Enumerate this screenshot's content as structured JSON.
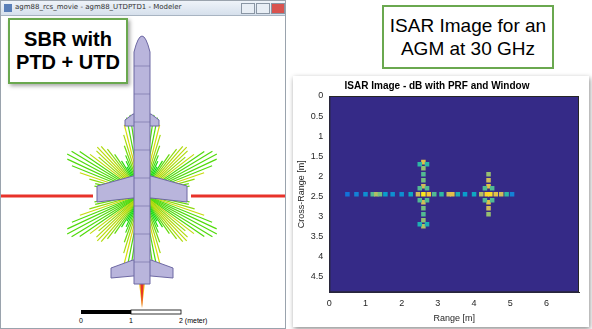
{
  "left_panel": {
    "window_title": "agm88_rcs_movie - agm88_UTDPTD1 - Modeler",
    "label": "SBR with PTD + UTD",
    "scale_bar": [
      "0",
      "1",
      "2 (meter)"
    ]
  },
  "right_panel": {
    "label": "ISAR Image for an AGM at 30 GHz"
  },
  "chart_data": {
    "type": "heatmap",
    "title": "ISAR Image - dB with PRF and Window",
    "x_label": "Range [m]",
    "y_label": "Cross-Range [m]",
    "xlim": [
      0,
      6.9
    ],
    "xticks": [
      0,
      1,
      2,
      3,
      4,
      5,
      6
    ],
    "ylim": [
      4.9,
      0
    ],
    "yticks": [
      0,
      0.5,
      1,
      1.5,
      2,
      2.5,
      3,
      3.5,
      4,
      4.5
    ],
    "grid": false,
    "crange": [
      -40,
      0
    ],
    "cells": [
      [
        0.5,
        2.45,
        -32
      ],
      [
        0.75,
        2.45,
        -30
      ],
      [
        1.0,
        2.45,
        -28
      ],
      [
        1.2,
        2.45,
        -18
      ],
      [
        1.3,
        2.45,
        -12
      ],
      [
        1.4,
        2.45,
        -16
      ],
      [
        1.55,
        2.45,
        -26
      ],
      [
        1.75,
        2.45,
        -28
      ],
      [
        2.0,
        2.45,
        -28
      ],
      [
        2.25,
        2.45,
        -24
      ],
      [
        2.45,
        2.45,
        -10
      ],
      [
        2.6,
        2.45,
        -2
      ],
      [
        2.75,
        2.45,
        -6
      ],
      [
        2.9,
        2.45,
        -18
      ],
      [
        3.1,
        2.45,
        -20
      ],
      [
        3.3,
        2.45,
        -10
      ],
      [
        3.4,
        2.45,
        -8
      ],
      [
        3.55,
        2.45,
        -22
      ],
      [
        3.75,
        2.45,
        -26
      ],
      [
        4.0,
        2.45,
        -24
      ],
      [
        4.2,
        2.45,
        -12
      ],
      [
        4.35,
        2.45,
        -4
      ],
      [
        4.45,
        2.45,
        -3
      ],
      [
        4.6,
        2.45,
        -8
      ],
      [
        4.75,
        2.45,
        -10
      ],
      [
        4.9,
        2.45,
        -20
      ],
      [
        5.05,
        2.45,
        -30
      ],
      [
        2.6,
        1.65,
        -8
      ],
      [
        2.6,
        1.8,
        -14
      ],
      [
        2.6,
        1.95,
        -18
      ],
      [
        2.6,
        2.1,
        -16
      ],
      [
        2.6,
        2.25,
        -10
      ],
      [
        2.6,
        2.65,
        -10
      ],
      [
        2.6,
        2.8,
        -16
      ],
      [
        2.6,
        2.95,
        -18
      ],
      [
        2.6,
        3.1,
        -14
      ],
      [
        2.6,
        3.25,
        -12
      ],
      [
        2.5,
        1.7,
        -20
      ],
      [
        2.7,
        1.7,
        -20
      ],
      [
        2.5,
        2.3,
        -18
      ],
      [
        2.7,
        2.3,
        -18
      ],
      [
        2.5,
        2.6,
        -18
      ],
      [
        2.7,
        2.6,
        -18
      ],
      [
        2.5,
        3.2,
        -22
      ],
      [
        2.7,
        3.2,
        -22
      ],
      [
        4.4,
        1.95,
        -14
      ],
      [
        4.4,
        2.1,
        -10
      ],
      [
        4.4,
        2.25,
        -8
      ],
      [
        4.4,
        2.65,
        -8
      ],
      [
        4.4,
        2.8,
        -10
      ],
      [
        4.4,
        2.95,
        -14
      ],
      [
        4.3,
        2.3,
        -18
      ],
      [
        4.5,
        2.3,
        -18
      ],
      [
        4.3,
        2.6,
        -18
      ],
      [
        4.5,
        2.6,
        -18
      ]
    ]
  }
}
